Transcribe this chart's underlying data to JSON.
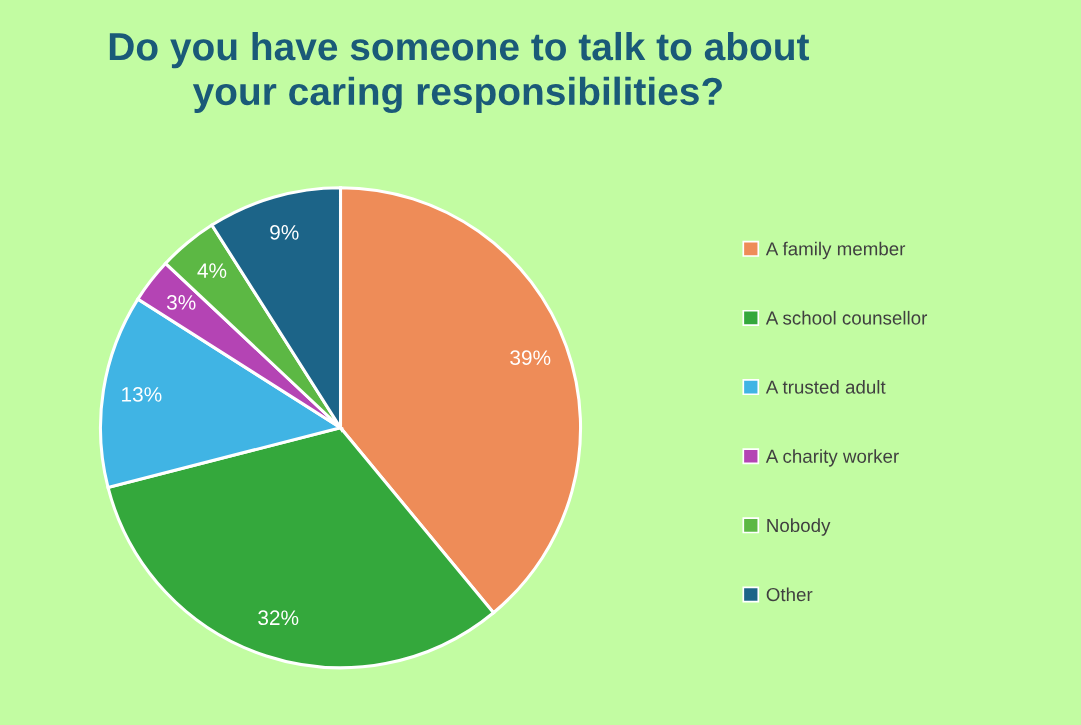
{
  "chart_data": {
    "type": "pie",
    "title": "Do you have someone to talk to about\nyour caring responsibilities?",
    "categories": [
      "A family member",
      "A school counsellor",
      "A trusted adult",
      "A charity worker",
      "Nobody",
      "Other"
    ],
    "values": [
      39,
      32,
      13,
      3,
      4,
      9
    ],
    "value_labels": [
      "39%",
      "32%",
      "13%",
      "3%",
      "4%",
      "9%"
    ],
    "colors": [
      "#ee8c58",
      "#34a83c",
      "#40b4e4",
      "#b444b4",
      "#5cb844",
      "#1c6488"
    ],
    "legend": "right"
  }
}
